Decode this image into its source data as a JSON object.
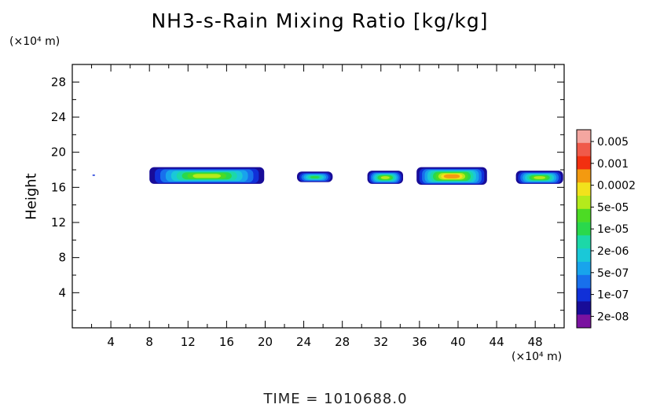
{
  "title": "NH3-s-Rain Mixing Ratio [kg/kg]",
  "footer": "TIME  =  1010688.0",
  "y_unit": "(×10⁴ m)",
  "x_unit": "(×10⁴ m)",
  "chart_data": {
    "type": "contour",
    "title": "NH3-s-Rain Mixing Ratio [kg/kg]",
    "xlabel": "",
    "ylabel": "Height",
    "x_unit": "(×10⁴ m)",
    "y_unit": "(×10⁴ m)",
    "xlim": [
      0,
      51
    ],
    "ylim": [
      0,
      30
    ],
    "xticks": [
      4,
      8,
      12,
      16,
      20,
      24,
      28,
      32,
      36,
      40,
      44,
      48
    ],
    "yticks": [
      4,
      8,
      12,
      16,
      20,
      24,
      28
    ],
    "colorbar": {
      "labels": [
        "0.005",
        "0.001",
        "0.0002",
        "5e-05",
        "1e-05",
        "2e-06",
        "5e-07",
        "1e-07",
        "2e-08"
      ],
      "colors": [
        "#f4a6a0",
        "#f05a4a",
        "#f23010",
        "#f39a10",
        "#f2e21c",
        "#b4ea1c",
        "#4cdb24",
        "#2ad84c",
        "#1cd8a8",
        "#1ac8d8",
        "#18a4ec",
        "#1870ec",
        "#1030d8",
        "#180c98",
        "#7a12a0"
      ]
    },
    "regions": [
      {
        "x": [
          8,
          19.9
        ],
        "y": [
          16.4,
          18.3
        ],
        "peak": "5e-05"
      },
      {
        "x": [
          23.3,
          27
        ],
        "y": [
          16.6,
          17.8
        ],
        "peak": "5e-06"
      },
      {
        "x": [
          30.6,
          34.3
        ],
        "y": [
          16.4,
          17.9
        ],
        "peak": "5e-05"
      },
      {
        "x": [
          35.7,
          43
        ],
        "y": [
          16.3,
          18.3
        ],
        "peak": "0.0002"
      },
      {
        "x": [
          46,
          50.9
        ],
        "y": [
          16.4,
          17.9
        ],
        "peak": "5e-05"
      }
    ]
  }
}
